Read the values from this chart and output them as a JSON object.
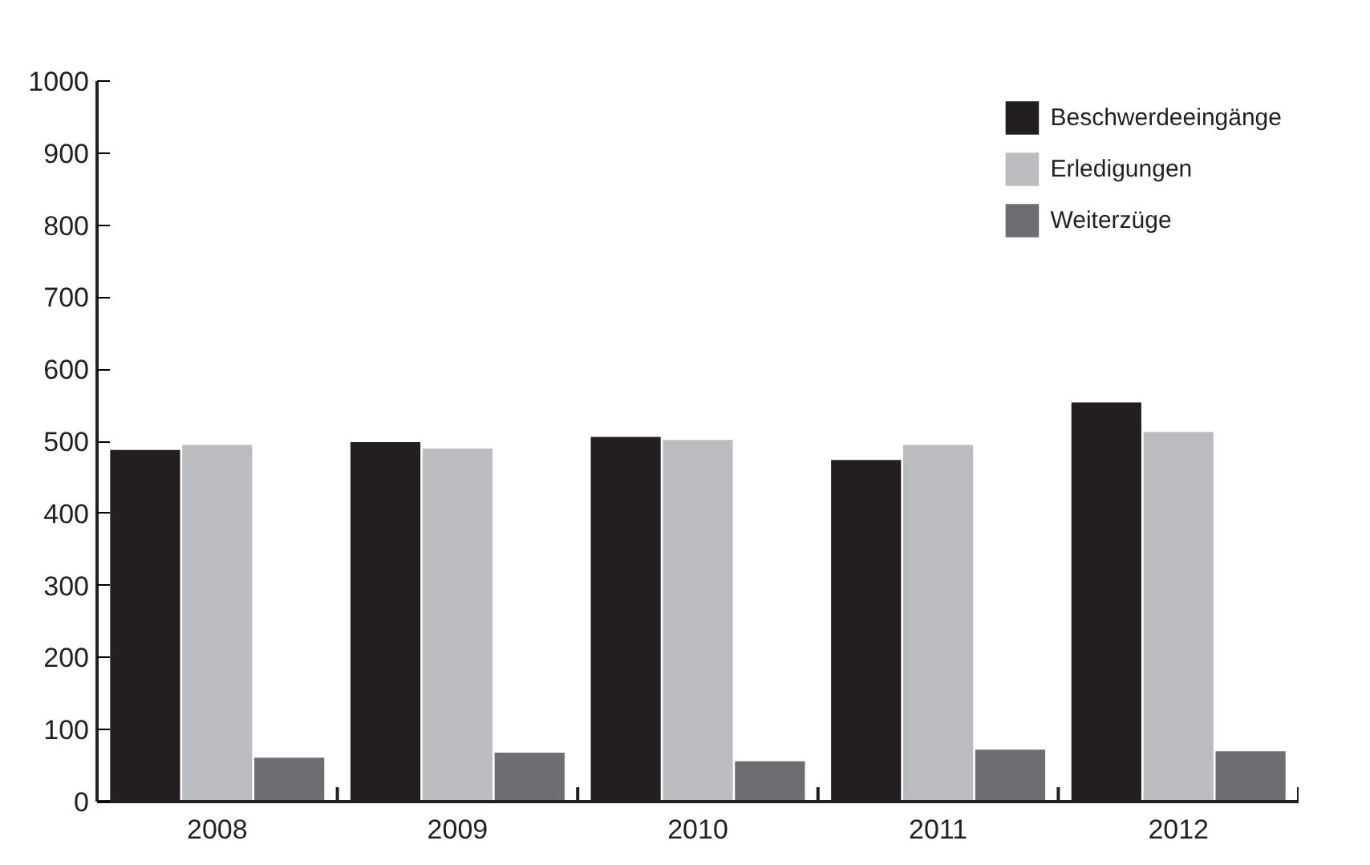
{
  "chart_data": {
    "type": "bar",
    "categories": [
      "2008",
      "2009",
      "2010",
      "2011",
      "2012"
    ],
    "series": [
      {
        "name": "Beschwerdeeingänge",
        "color": "#231f20",
        "values": [
          488,
          499,
          506,
          474,
          554
        ]
      },
      {
        "name": "Erledigungen",
        "color": "#bbbcbf",
        "values": [
          495,
          490,
          502,
          495,
          513
        ]
      },
      {
        "name": "Weiterzüge",
        "color": "#6d6e71",
        "values": [
          61,
          68,
          56,
          72,
          70
        ]
      }
    ],
    "ylim": [
      0,
      1000
    ],
    "yticks": [
      0,
      100,
      200,
      300,
      400,
      500,
      600,
      700,
      800,
      900,
      1000
    ],
    "grid": false,
    "legend": "top right"
  }
}
